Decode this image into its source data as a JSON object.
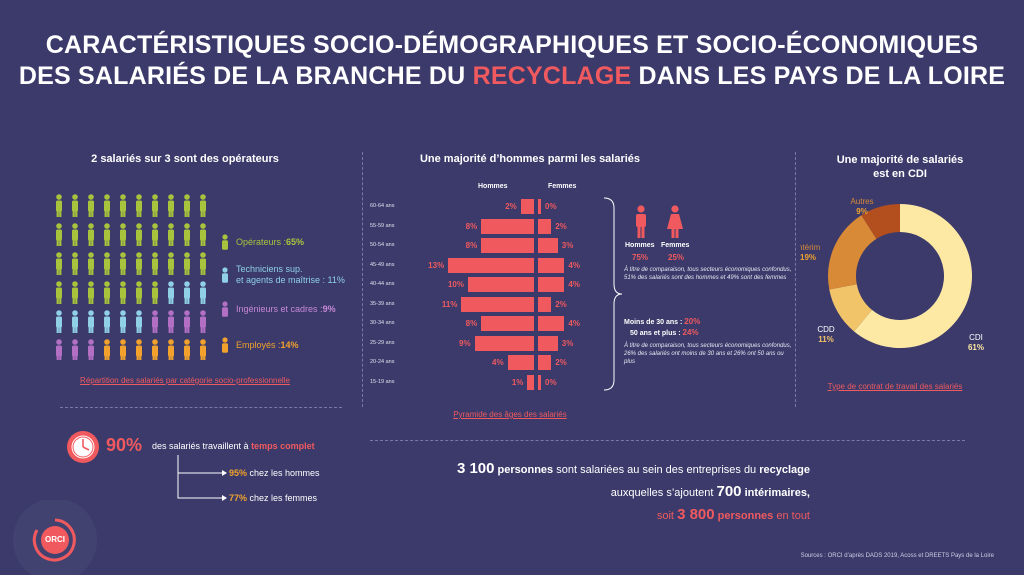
{
  "title": {
    "line1": "CARACTÉRISTIQUES SOCIO-DÉMOGRAPHIQUES ET SOCIO-ÉCONOMIQUES",
    "line2_before": "DES SALARIÉS DE LA BRANCHE DU ",
    "line2_highlight": "RECYCLAGE",
    "line2_after": " DANS LES PAYS DE LA LOIRE"
  },
  "colors": {
    "background": "#3b3a6b",
    "accent_red": "#f05a5e",
    "operateurs": "#a8c43c",
    "techniciens": "#8fd0e6",
    "ingenieurs": "#b26fc4",
    "employes": "#f2a22c",
    "cdi": "#fde9a3",
    "cdd": "#f2c46a",
    "interim": "#d98a36",
    "autres": "#b34e1e"
  },
  "csp": {
    "heading": "2 salariés sur 3 sont des opérateurs",
    "items": [
      {
        "label": "Opérateurs : ",
        "pct": "65%",
        "color": "#a8c43c",
        "count": 65
      },
      {
        "label_line1": "Techniciens sup.",
        "label": "et agents de maîtrise : ",
        "pct": "11%",
        "color": "#8fd0e6",
        "count": 11
      },
      {
        "label": "Ingénieurs et cadres : ",
        "pct": "9%",
        "color": "#b26fc4",
        "count": 9
      },
      {
        "label": "Employés : ",
        "pct": "14%",
        "color": "#f2a22c",
        "count": 14
      }
    ],
    "link": "Répartition des salariés par catégorie socio-professionnelle"
  },
  "pyramid": {
    "heading": "Une majorité d’hommes parmi les salariés",
    "col_hommes": "Hommes",
    "col_femmes": "Femmes",
    "link": "Pyramide des âges des salariés"
  },
  "gender": {
    "hommes_label": "Hommes",
    "femmes_label": "Femmes",
    "hommes_pct": "75%",
    "femmes_pct": "25%",
    "note1": "À titre de comparaison, tous secteurs économiques confondus, 51% des salariés sont des hommes et 49% sont des femmes",
    "moins30_label": "Moins de 30 ans : ",
    "moins30_pct": "20%",
    "plus50_label": "50 ans et plus : ",
    "plus50_pct": "24%",
    "note2": "À titre de comparaison, tous secteurs économiques confondus, 26% des salariés ont moins de 30 ans et 26% ont 50 ans ou plus"
  },
  "contract": {
    "heading_line1": "Une majorité de salariés",
    "heading_line2": "est en CDI",
    "link": "Type de contrat de travail des salariés"
  },
  "fulltime": {
    "pct": "90%",
    "text_before": "des salariés travaillent à ",
    "text_bold": "temps complet",
    "men_pct": "95%",
    "men_text": " chez les hommes",
    "women_pct": "77%",
    "women_text": " chez les femmes"
  },
  "summary": {
    "l1_num": "3 100",
    "l1_bold": " personnes",
    "l1_text": " sont salariées au sein des entreprises du ",
    "l1_end": "recyclage",
    "l2_text": "auxquelles s’ajoutent ",
    "l2_num": "700",
    "l2_bold": " intérimaires,",
    "l3_text": "soit ",
    "l3_num": "3 800",
    "l3_bold": " personnes",
    "l3_end": " en tout"
  },
  "logo": {
    "text": "ORCI"
  },
  "source": "Sources : ORCI d’après DADS 2019, Acoss et DREETS Pays de la Loire",
  "chart_data": [
    {
      "type": "bar",
      "title": "Une majorité d’hommes parmi les salariés",
      "categories": [
        "60-64 ans",
        "55-59 ans",
        "50-54 ans",
        "45-49 ans",
        "40-44 ans",
        "35-39 ans",
        "30-34 ans",
        "25-29 ans",
        "20-24 ans",
        "15-19 ans"
      ],
      "series": [
        {
          "name": "Hommes",
          "values": [
            2,
            8,
            8,
            13,
            10,
            11,
            8,
            9,
            4,
            1
          ]
        },
        {
          "name": "Femmes",
          "values": [
            0,
            2,
            3,
            4,
            4,
            2,
            4,
            3,
            2,
            0
          ]
        }
      ],
      "unit": "%"
    },
    {
      "type": "pie",
      "title": "Une majorité de salariés est en CDI",
      "categories": [
        "CDI",
        "CDD",
        "Intérim",
        "Autres"
      ],
      "values": [
        61,
        11,
        19,
        9
      ]
    }
  ]
}
